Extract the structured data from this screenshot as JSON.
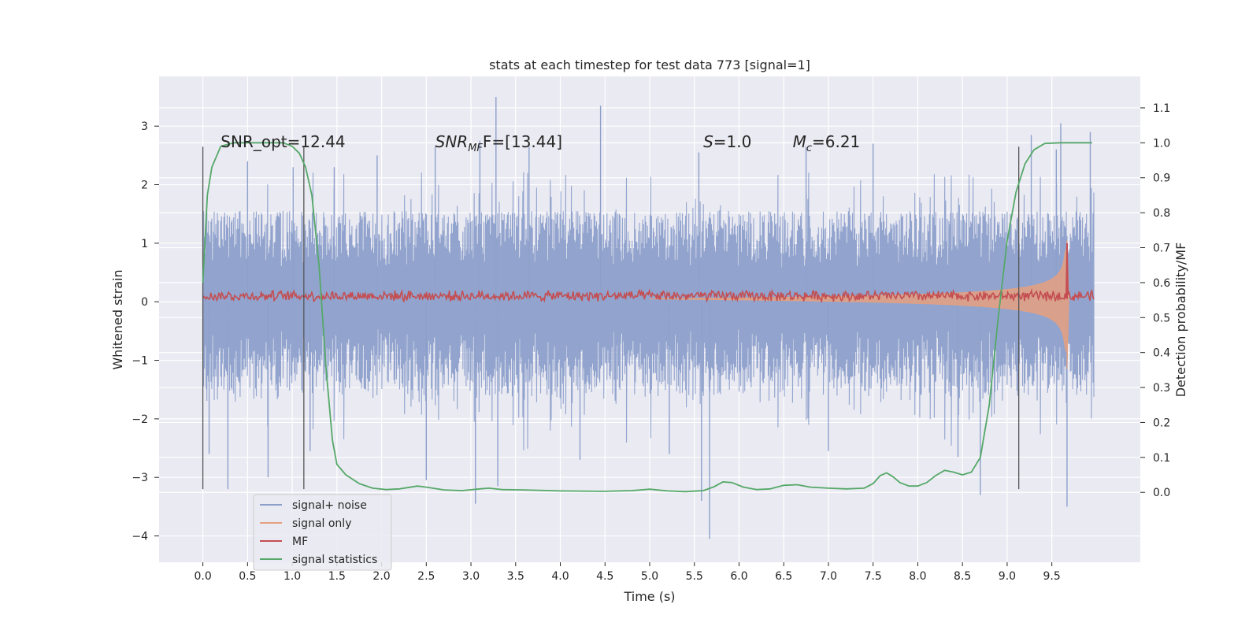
{
  "chart_data": {
    "type": "line",
    "title": "stats at each timestep for test data 773 [signal=1]",
    "xlabel": "Time (s)",
    "ylabel": "Whitened strain",
    "y2label": "Detection probability/MF",
    "xlim": [
      -0.49,
      10.49
    ],
    "ylim": [
      -4.45,
      3.85
    ],
    "y2lim": [
      -0.2,
      1.19
    ],
    "xticks": [
      0.0,
      0.5,
      1.0,
      1.5,
      2.0,
      2.5,
      3.0,
      3.5,
      4.0,
      4.5,
      5.0,
      5.5,
      6.0,
      6.5,
      7.0,
      7.5,
      8.0,
      8.5,
      9.0,
      9.5
    ],
    "xtick_labels": [
      "0.0",
      "0.5",
      "1.0",
      "1.5",
      "2.0",
      "2.5",
      "3.0",
      "3.5",
      "4.0",
      "4.5",
      "5.0",
      "5.5",
      "6.0",
      "6.5",
      "7.0",
      "7.5",
      "8.0",
      "8.5",
      "9.0",
      "9.5"
    ],
    "yticks": [
      3,
      2,
      1,
      0,
      -1,
      -2,
      -3,
      -4
    ],
    "ytick_labels": [
      "3",
      "2",
      "1",
      "0",
      "−1",
      "−2",
      "−3",
      "−4"
    ],
    "y2ticks": [
      1.1,
      1.0,
      0.9,
      0.8,
      0.7,
      0.6,
      0.5,
      0.4,
      0.3,
      0.2,
      0.1,
      0.0
    ],
    "y2tick_labels": [
      "1.1",
      "1.0",
      "0.9",
      "0.8",
      "0.7",
      "0.6",
      "0.5",
      "0.4",
      "0.3",
      "0.2",
      "0.1",
      "0.0"
    ],
    "grid": true,
    "legend_position": "lower-left",
    "annotations": [
      {
        "id": "snr-opt",
        "x": 0.2,
        "y": 2.75,
        "text": "SNR_opt=12.44"
      },
      {
        "id": "snr-mf",
        "x": 2.6,
        "y": 2.75,
        "main": "SNR",
        "sub": "MF",
        "rest": "F=[13.44]"
      },
      {
        "id": "s-value",
        "x": 5.6,
        "y": 2.75,
        "main": "S",
        "rest": "=1.0"
      },
      {
        "id": "mc-value",
        "x": 6.6,
        "y": 2.75,
        "main": "M",
        "sub": "c",
        "rest": "=6.21"
      }
    ],
    "vlines": [
      0.0,
      1.13,
      9.13
    ],
    "vline_range": [
      -3.2,
      2.65
    ],
    "series": [
      {
        "name": "signal+ noise",
        "color": "#8da0cb",
        "kind": "noise",
        "x_range": [
          0.0,
          9.97
        ],
        "envelope": 1.5,
        "outliers": [
          {
            "x": 0.0,
            "y": 1.55
          },
          {
            "x": 0.07,
            "y": -2.6
          },
          {
            "x": 0.28,
            "y": -3.2
          },
          {
            "x": 0.5,
            "y": 2.4
          },
          {
            "x": 0.73,
            "y": -3.0
          },
          {
            "x": 1.01,
            "y": 2.3
          },
          {
            "x": 1.2,
            "y": -2.55
          },
          {
            "x": 1.47,
            "y": 2.3
          },
          {
            "x": 1.95,
            "y": 2.5
          },
          {
            "x": 2.5,
            "y": -3.05
          },
          {
            "x": 2.6,
            "y": 2.65
          },
          {
            "x": 3.05,
            "y": -3.45
          },
          {
            "x": 3.1,
            "y": 2.75
          },
          {
            "x": 3.28,
            "y": 3.5
          },
          {
            "x": 3.3,
            "y": -3.15
          },
          {
            "x": 3.65,
            "y": 2.65
          },
          {
            "x": 4.22,
            "y": -2.7
          },
          {
            "x": 4.45,
            "y": 3.35
          },
          {
            "x": 5.22,
            "y": -2.6
          },
          {
            "x": 5.55,
            "y": 2.55
          },
          {
            "x": 5.58,
            "y": -3.4
          },
          {
            "x": 5.67,
            "y": -4.05
          },
          {
            "x": 6.75,
            "y": 2.65
          },
          {
            "x": 7.0,
            "y": -2.55
          },
          {
            "x": 7.5,
            "y": 2.7
          },
          {
            "x": 8.45,
            "y": -2.65
          },
          {
            "x": 8.7,
            "y": -3.3
          },
          {
            "x": 9.27,
            "y": 2.85
          },
          {
            "x": 9.55,
            "y": 2.6
          },
          {
            "x": 9.6,
            "y": 3.05
          },
          {
            "x": 9.67,
            "y": -3.5
          },
          {
            "x": 9.93,
            "y": 2.9
          }
        ]
      },
      {
        "name": "signal only",
        "color": "#e5a07f",
        "kind": "chirp",
        "x_range": [
          5.0,
          9.69
        ],
        "peak_x": 9.67,
        "peak_amplitude": 1.05,
        "peak_min": -1.15
      },
      {
        "name": "MF",
        "color": "#c44e52",
        "kind": "mf",
        "x_range": [
          0.0,
          9.97
        ],
        "baseline": 0.1,
        "ripple": 0.1,
        "spike_x": 9.67,
        "spike_y": 1.0
      },
      {
        "name": "signal statistics",
        "color": "#55a868",
        "kind": "line",
        "axis": "right",
        "points": [
          [
            0.0,
            0.6
          ],
          [
            0.05,
            0.85
          ],
          [
            0.1,
            0.93
          ],
          [
            0.2,
            0.99
          ],
          [
            0.35,
            1.0
          ],
          [
            0.9,
            1.0
          ],
          [
            1.0,
            0.99
          ],
          [
            1.08,
            0.97
          ],
          [
            1.15,
            0.93
          ],
          [
            1.22,
            0.85
          ],
          [
            1.3,
            0.65
          ],
          [
            1.38,
            0.35
          ],
          [
            1.45,
            0.15
          ],
          [
            1.5,
            0.08
          ],
          [
            1.6,
            0.05
          ],
          [
            1.75,
            0.025
          ],
          [
            1.9,
            0.012
          ],
          [
            2.05,
            0.008
          ],
          [
            2.2,
            0.01
          ],
          [
            2.4,
            0.018
          ],
          [
            2.5,
            0.015
          ],
          [
            2.7,
            0.007
          ],
          [
            2.9,
            0.005
          ],
          [
            3.1,
            0.01
          ],
          [
            3.2,
            0.012
          ],
          [
            3.35,
            0.008
          ],
          [
            3.6,
            0.007
          ],
          [
            4.0,
            0.004
          ],
          [
            4.5,
            0.003
          ],
          [
            4.8,
            0.005
          ],
          [
            5.0,
            0.009
          ],
          [
            5.2,
            0.004
          ],
          [
            5.4,
            0.002
          ],
          [
            5.6,
            0.005
          ],
          [
            5.72,
            0.016
          ],
          [
            5.82,
            0.03
          ],
          [
            5.92,
            0.028
          ],
          [
            6.05,
            0.015
          ],
          [
            6.2,
            0.008
          ],
          [
            6.35,
            0.01
          ],
          [
            6.5,
            0.02
          ],
          [
            6.65,
            0.022
          ],
          [
            6.8,
            0.015
          ],
          [
            7.0,
            0.012
          ],
          [
            7.2,
            0.01
          ],
          [
            7.4,
            0.012
          ],
          [
            7.5,
            0.025
          ],
          [
            7.58,
            0.048
          ],
          [
            7.65,
            0.056
          ],
          [
            7.72,
            0.045
          ],
          [
            7.8,
            0.028
          ],
          [
            7.9,
            0.018
          ],
          [
            8.0,
            0.018
          ],
          [
            8.1,
            0.028
          ],
          [
            8.2,
            0.048
          ],
          [
            8.3,
            0.063
          ],
          [
            8.4,
            0.058
          ],
          [
            8.5,
            0.05
          ],
          [
            8.6,
            0.058
          ],
          [
            8.7,
            0.1
          ],
          [
            8.8,
            0.25
          ],
          [
            8.9,
            0.5
          ],
          [
            9.0,
            0.72
          ],
          [
            9.1,
            0.86
          ],
          [
            9.2,
            0.94
          ],
          [
            9.3,
            0.98
          ],
          [
            9.42,
            0.998
          ],
          [
            9.6,
            1.0
          ],
          [
            9.95,
            1.0
          ]
        ]
      }
    ]
  }
}
